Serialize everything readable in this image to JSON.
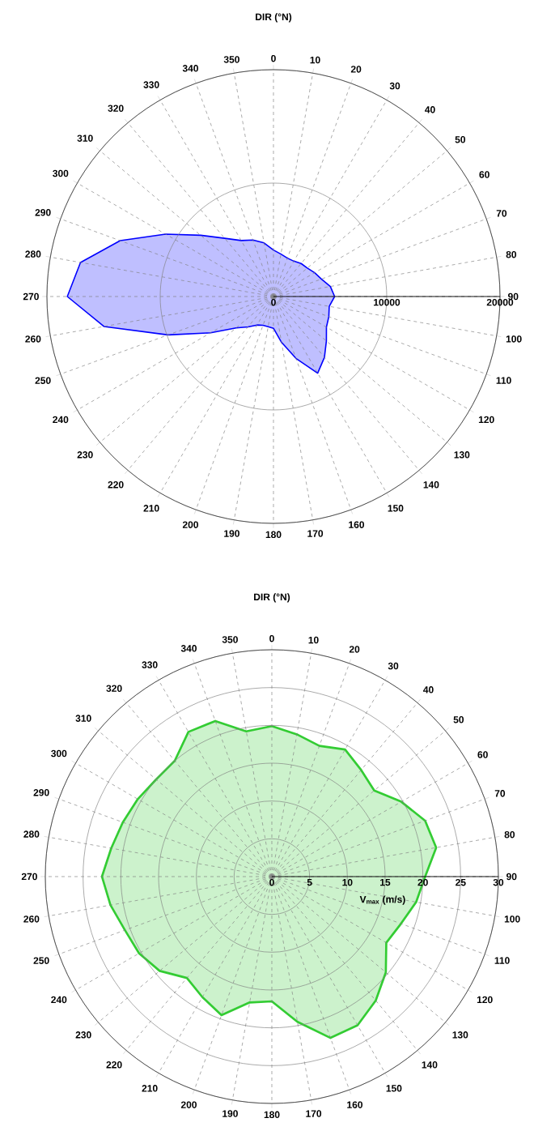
{
  "chart_data": [
    {
      "type": "radar",
      "title": "DIR (°N)",
      "categories": [
        "0",
        "10",
        "20",
        "30",
        "40",
        "50",
        "60",
        "70",
        "80",
        "90",
        "100",
        "110",
        "120",
        "130",
        "140",
        "150",
        "160",
        "170",
        "180",
        "190",
        "200",
        "210",
        "220",
        "230",
        "240",
        "250",
        "260",
        "270",
        "280",
        "290",
        "300",
        "310",
        "320",
        "330",
        "340",
        "350"
      ],
      "series": [
        {
          "color": "#0000ff",
          "values": [
            4100,
            3800,
            3600,
            3600,
            3800,
            3900,
            4200,
            4500,
            5100,
            5400,
            5000,
            5200,
            5400,
            6100,
            7000,
            7800,
            5800,
            4100,
            2800,
            2700,
            2700,
            2900,
            3500,
            4300,
            6400,
            9900,
            15200,
            18200,
            17300,
            14400,
            11000,
            8400,
            6700,
            5700,
            5300,
            4800
          ]
        }
      ],
      "ylim": [
        0,
        20000
      ],
      "yticks": [
        0,
        10000,
        20000
      ],
      "grid": true
    },
    {
      "type": "radar",
      "title": "DIR (°N)",
      "ylabel": "V$_{max}$ (m/s)",
      "categories": [
        "0",
        "10",
        "20",
        "30",
        "40",
        "50",
        "60",
        "70",
        "80",
        "90",
        "100",
        "110",
        "120",
        "130",
        "140",
        "150",
        "160",
        "170",
        "180",
        "190",
        "200",
        "210",
        "220",
        "230",
        "240",
        "250",
        "260",
        "270",
        "280",
        "290",
        "300",
        "310",
        "320",
        "330",
        "340",
        "350"
      ],
      "series": [
        {
          "color": "#33cc33",
          "values": [
            19.9,
            19.1,
            18.4,
            19.4,
            18.4,
            17.7,
            19.8,
            21.6,
            22.1,
            20.3,
            19.4,
            18.2,
            17.5,
            19.7,
            21.4,
            22.7,
            22.7,
            19.5,
            16.5,
            16.9,
            19.5,
            18.4,
            17.5,
            19.4,
            20.3,
            20.7,
            21.7,
            22.5,
            21.6,
            21.0,
            20.5,
            20.0,
            20.0,
            22.1,
            21.9,
            19.5
          ]
        }
      ],
      "ylim": [
        0,
        30
      ],
      "yticks": [
        0,
        5,
        10,
        15,
        20,
        25,
        30
      ],
      "grid": true
    }
  ]
}
